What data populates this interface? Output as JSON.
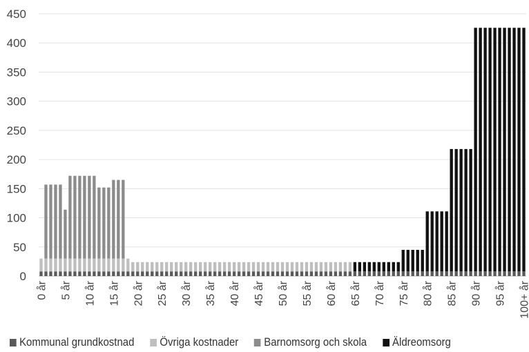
{
  "chart_data": {
    "type": "bar",
    "stacked": true,
    "title": "",
    "xlabel": "",
    "ylabel": "",
    "ylim": [
      0,
      450
    ],
    "yticks": [
      0,
      50,
      100,
      150,
      200,
      250,
      300,
      350,
      400,
      450
    ],
    "grid": true,
    "legend_position": "bottom",
    "x_tick_labels": [
      "0 år",
      "5 år",
      "10 år",
      "15 år",
      "20 år",
      "25 år",
      "30 år",
      "35 år",
      "40 år",
      "45 år",
      "50 år",
      "55 år",
      "60 år",
      "65 år",
      "70 år",
      "75 år",
      "80 år",
      "85 år",
      "90 år",
      "95 år",
      "100+ år"
    ],
    "categories": [
      "0",
      "1",
      "2",
      "3",
      "4",
      "5",
      "6",
      "7",
      "8",
      "9",
      "10",
      "11",
      "12",
      "13",
      "14",
      "15",
      "16",
      "17",
      "18",
      "19",
      "20",
      "21",
      "22",
      "23",
      "24",
      "25",
      "26",
      "27",
      "28",
      "29",
      "30",
      "31",
      "32",
      "33",
      "34",
      "35",
      "36",
      "37",
      "38",
      "39",
      "40",
      "41",
      "42",
      "43",
      "44",
      "45",
      "46",
      "47",
      "48",
      "49",
      "50",
      "51",
      "52",
      "53",
      "54",
      "55",
      "56",
      "57",
      "58",
      "59",
      "60",
      "61",
      "62",
      "63",
      "64",
      "65",
      "66",
      "67",
      "68",
      "69",
      "70",
      "71",
      "72",
      "73",
      "74",
      "75",
      "76",
      "77",
      "78",
      "79",
      "80",
      "81",
      "82",
      "83",
      "84",
      "85",
      "86",
      "87",
      "88",
      "89",
      "90",
      "91",
      "92",
      "93",
      "94",
      "95",
      "96",
      "97",
      "98",
      "99",
      "100+"
    ],
    "series": [
      {
        "name": "Kommunal grundkostnad",
        "color": "#595959",
        "values": [
          8,
          8,
          8,
          8,
          8,
          8,
          8,
          8,
          8,
          8,
          8,
          8,
          8,
          8,
          8,
          8,
          8,
          8,
          8,
          8,
          8,
          8,
          8,
          8,
          8,
          8,
          8,
          8,
          8,
          8,
          8,
          8,
          8,
          8,
          8,
          8,
          8,
          8,
          8,
          8,
          8,
          8,
          8,
          8,
          8,
          8,
          8,
          8,
          8,
          8,
          8,
          8,
          8,
          8,
          8,
          8,
          8,
          8,
          8,
          8,
          8,
          8,
          8,
          8,
          8,
          8,
          8,
          8,
          8,
          8,
          8,
          8,
          8,
          8,
          8,
          8,
          8,
          8,
          8,
          8,
          8,
          8,
          8,
          8,
          8,
          8,
          8,
          8,
          8,
          8,
          8,
          8,
          8,
          8,
          8,
          8,
          8,
          8,
          8,
          8,
          8
        ]
      },
      {
        "name": "Övriga kostnader",
        "color": "#bfbfbf",
        "values": [
          22,
          22,
          22,
          22,
          22,
          22,
          22,
          22,
          22,
          22,
          22,
          22,
          22,
          22,
          22,
          22,
          22,
          22,
          22,
          16,
          16,
          16,
          16,
          16,
          16,
          16,
          16,
          16,
          16,
          16,
          16,
          16,
          16,
          16,
          16,
          16,
          16,
          16,
          16,
          16,
          16,
          16,
          16,
          16,
          16,
          16,
          16,
          16,
          16,
          16,
          16,
          16,
          16,
          16,
          16,
          16,
          16,
          16,
          16,
          16,
          16,
          16,
          16,
          16,
          16,
          0,
          0,
          0,
          0,
          0,
          0,
          0,
          0,
          0,
          0,
          0,
          0,
          0,
          0,
          0,
          0,
          0,
          0,
          0,
          0,
          0,
          0,
          0,
          0,
          0,
          0,
          0,
          0,
          0,
          0,
          0,
          0,
          0,
          0,
          0,
          0
        ]
      },
      {
        "name": "Barnomsorg och skola",
        "color": "#8c8c8c",
        "values": [
          0,
          127,
          127,
          127,
          127,
          84,
          142,
          142,
          142,
          142,
          142,
          142,
          122,
          122,
          122,
          135,
          135,
          135,
          0,
          0,
          0,
          0,
          0,
          0,
          0,
          0,
          0,
          0,
          0,
          0,
          0,
          0,
          0,
          0,
          0,
          0,
          0,
          0,
          0,
          0,
          0,
          0,
          0,
          0,
          0,
          0,
          0,
          0,
          0,
          0,
          0,
          0,
          0,
          0,
          0,
          0,
          0,
          0,
          0,
          0,
          0,
          0,
          0,
          0,
          0,
          0,
          0,
          0,
          0,
          0,
          0,
          0,
          0,
          0,
          0,
          0,
          0,
          0,
          0,
          0,
          0,
          0,
          0,
          0,
          0,
          0,
          0,
          0,
          0,
          0,
          0,
          0,
          0,
          0,
          0,
          0,
          0,
          0,
          0,
          0,
          0
        ]
      },
      {
        "name": "Äldreomsorg",
        "color": "#111111",
        "values": [
          0,
          0,
          0,
          0,
          0,
          0,
          0,
          0,
          0,
          0,
          0,
          0,
          0,
          0,
          0,
          0,
          0,
          0,
          0,
          0,
          0,
          0,
          0,
          0,
          0,
          0,
          0,
          0,
          0,
          0,
          0,
          0,
          0,
          0,
          0,
          0,
          0,
          0,
          0,
          0,
          0,
          0,
          0,
          0,
          0,
          0,
          0,
          0,
          0,
          0,
          0,
          0,
          0,
          0,
          0,
          0,
          0,
          0,
          0,
          0,
          0,
          0,
          0,
          0,
          0,
          16,
          16,
          16,
          16,
          16,
          16,
          16,
          16,
          16,
          16,
          37,
          37,
          37,
          37,
          37,
          103,
          103,
          103,
          103,
          103,
          210,
          210,
          210,
          210,
          210,
          418,
          418,
          418,
          418,
          418,
          418,
          418,
          418,
          418,
          418,
          418
        ]
      }
    ]
  }
}
